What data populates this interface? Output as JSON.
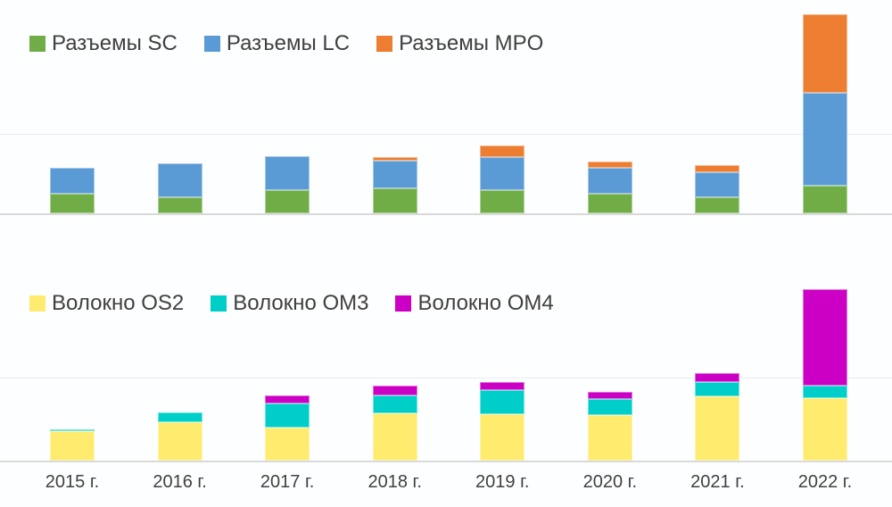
{
  "page": {
    "background": "#FFFFFF",
    "axis_line_color": "#D9D9D9",
    "text_color": "#404040"
  },
  "chart_data": [
    {
      "type": "bar",
      "stacked": true,
      "title": "",
      "legend_position": "top-left",
      "value_axis": "hidden — values estimated in relative pixel units",
      "gridlines": false,
      "categories": [
        "2015 г.",
        "2016 г.",
        "2017 г.",
        "2018 г.",
        "2019 г.",
        "2020 г.",
        "2021 г.",
        "2022 г."
      ],
      "series": [
        {
          "key": "sc",
          "name": "Разъемы SC",
          "color": "#70AD47",
          "values": [
            22,
            18,
            26,
            28,
            26,
            22,
            18,
            31
          ]
        },
        {
          "key": "lc",
          "name": "Разъемы LC",
          "color": "#5B9BD5",
          "values": [
            29,
            38,
            38,
            31,
            37,
            29,
            28,
            104
          ]
        },
        {
          "key": "mpo",
          "name": "Разъемы MPO",
          "color": "#ED7D31",
          "values": [
            0,
            0,
            0,
            4,
            13,
            7,
            8,
            88
          ]
        }
      ]
    },
    {
      "type": "bar",
      "stacked": true,
      "title": "",
      "legend_position": "top-left",
      "value_axis": "hidden — values estimated in relative pixel units",
      "gridlines": false,
      "categories": [
        "2015 г.",
        "2016 г.",
        "2017 г.",
        "2018 г.",
        "2019 г.",
        "2020 г.",
        "2021 г.",
        "2022 г."
      ],
      "series": [
        {
          "key": "os2",
          "name": "Волокно OS2",
          "color": "#FFEB6E",
          "values": [
            33,
            43,
            37,
            53,
            52,
            51,
            72,
            70
          ]
        },
        {
          "key": "om3",
          "name": "Волокно OM3",
          "color": "#00CFC9",
          "values": [
            2,
            11,
            27,
            20,
            27,
            18,
            16,
            14
          ]
        },
        {
          "key": "om4",
          "name": "Волокно OM4",
          "color": "#CC00C4",
          "values": [
            0,
            0,
            9,
            11,
            9,
            8,
            10,
            108
          ]
        }
      ]
    }
  ]
}
